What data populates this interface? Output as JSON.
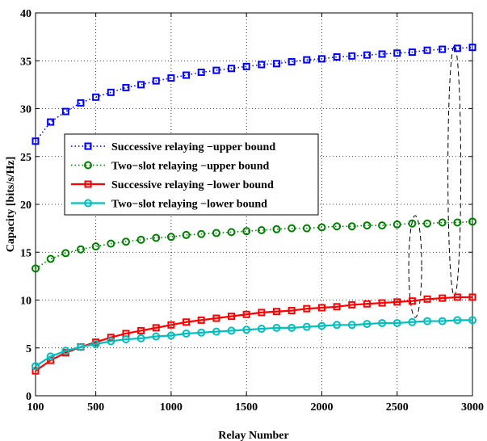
{
  "chart_data": {
    "type": "line",
    "xlabel": "Relay Number",
    "ylabel": "Capacity [bits/s/Hz]",
    "xlim": [
      100,
      3000
    ],
    "ylim": [
      0,
      40
    ],
    "xticks": [
      100,
      500,
      1000,
      1500,
      2000,
      2500,
      3000
    ],
    "yticks": [
      0,
      5,
      10,
      15,
      20,
      25,
      30,
      35,
      40
    ],
    "grid": true,
    "legend_position": "upper-left",
    "x": [
      100,
      200,
      300,
      400,
      500,
      600,
      700,
      800,
      900,
      1000,
      1100,
      1200,
      1300,
      1400,
      1500,
      1600,
      1700,
      1800,
      1900,
      2000,
      2100,
      2200,
      2300,
      2400,
      2500,
      2600,
      2700,
      2800,
      2900,
      3000
    ],
    "series": [
      {
        "name": "Successive relaying −upper bound",
        "color": "#0000ff",
        "line_style": "dotted",
        "marker": "square",
        "values": [
          26.6,
          28.6,
          29.7,
          30.6,
          31.2,
          31.7,
          32.2,
          32.5,
          32.9,
          33.2,
          33.5,
          33.8,
          34.0,
          34.2,
          34.4,
          34.6,
          34.7,
          34.9,
          35.1,
          35.2,
          35.4,
          35.5,
          35.6,
          35.7,
          35.8,
          35.9,
          36.1,
          36.2,
          36.3,
          36.4
        ]
      },
      {
        "name": "Two−slot relaying −upper bound",
        "color": "#008000",
        "line_style": "dotted",
        "marker": "circle",
        "values": [
          13.3,
          14.3,
          14.9,
          15.3,
          15.6,
          15.9,
          16.1,
          16.3,
          16.5,
          16.6,
          16.8,
          16.9,
          17.0,
          17.1,
          17.2,
          17.3,
          17.4,
          17.5,
          17.5,
          17.6,
          17.7,
          17.7,
          17.8,
          17.8,
          17.9,
          18.0,
          18.0,
          18.1,
          18.1,
          18.2
        ]
      },
      {
        "name": "Successive relaying −lower bound",
        "color": "#ff0000",
        "line_style": "solid",
        "marker": "square",
        "values": [
          2.6,
          3.7,
          4.5,
          5.1,
          5.6,
          6.1,
          6.5,
          6.8,
          7.1,
          7.4,
          7.7,
          7.9,
          8.1,
          8.3,
          8.5,
          8.7,
          8.8,
          8.9,
          9.1,
          9.2,
          9.3,
          9.5,
          9.6,
          9.7,
          9.8,
          9.9,
          10.1,
          10.2,
          10.3,
          10.3
        ]
      },
      {
        "name": "Two−slot relaying −lower bound",
        "color": "#00bfbf",
        "line_style": "solid",
        "marker": "circle",
        "values": [
          3.1,
          4.1,
          4.7,
          5.1,
          5.4,
          5.7,
          5.9,
          6.0,
          6.2,
          6.3,
          6.5,
          6.6,
          6.7,
          6.8,
          6.9,
          7.0,
          7.1,
          7.1,
          7.2,
          7.3,
          7.4,
          7.4,
          7.5,
          7.6,
          7.6,
          7.7,
          7.8,
          7.8,
          7.9,
          7.9
        ]
      }
    ]
  }
}
